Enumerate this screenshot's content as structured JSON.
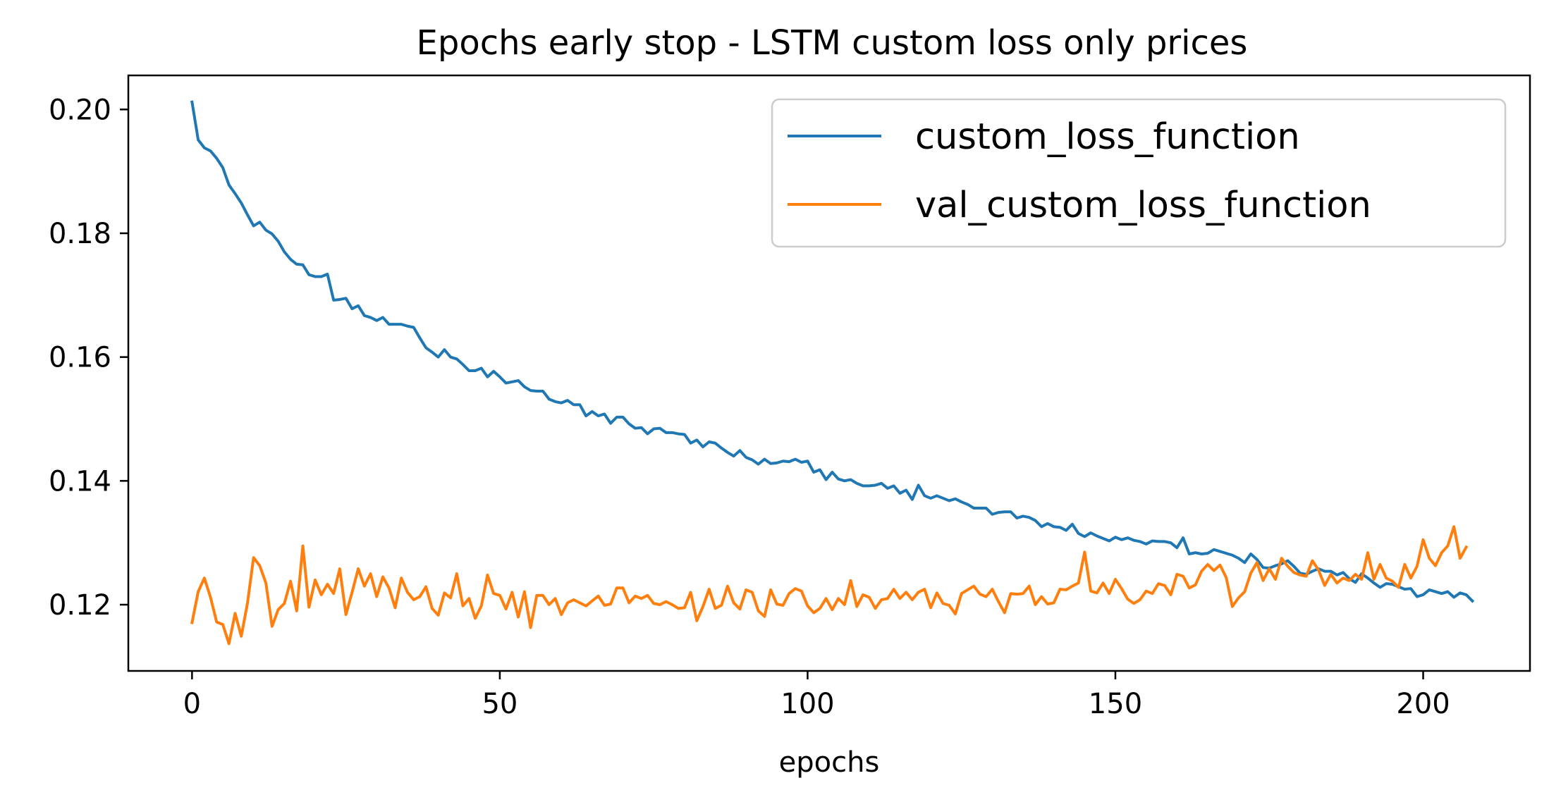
{
  "chart_data": {
    "type": "line",
    "title": "Epochs early stop - LSTM custom loss only prices",
    "xlabel": "epochs",
    "ylabel": "",
    "xlim": [
      -10.35,
      217.35
    ],
    "ylim": [
      0.1093,
      0.2055
    ],
    "xticks": [
      0,
      50,
      100,
      150,
      200
    ],
    "xtick_labels": [
      "0",
      "50",
      "100",
      "150",
      "200"
    ],
    "yticks": [
      0.12,
      0.14,
      0.16,
      0.18,
      0.2
    ],
    "ytick_labels": [
      "0.12",
      "0.14",
      "0.16",
      "0.18",
      "0.20"
    ],
    "grid": false,
    "legend_position": "top-right",
    "series": [
      {
        "name": "custom_loss_function",
        "color": "#1f77b4",
        "values": [
          0.2012,
          0.1951,
          0.1938,
          0.1933,
          0.1921,
          0.1906,
          0.1878,
          0.1864,
          0.1849,
          0.183,
          0.1812,
          0.1818,
          0.1805,
          0.1799,
          0.1787,
          0.177,
          0.1758,
          0.175,
          0.1749,
          0.1733,
          0.173,
          0.173,
          0.1734,
          0.1692,
          0.1693,
          0.1695,
          0.1678,
          0.1683,
          0.1667,
          0.1664,
          0.1659,
          0.1664,
          0.1653,
          0.1653,
          0.1653,
          0.165,
          0.1648,
          0.1631,
          0.1615,
          0.1608,
          0.16,
          0.1612,
          0.16,
          0.1597,
          0.1588,
          0.1578,
          0.1578,
          0.1582,
          0.1568,
          0.1577,
          0.1568,
          0.1558,
          0.156,
          0.1562,
          0.1552,
          0.1546,
          0.1545,
          0.1545,
          0.1532,
          0.1528,
          0.1526,
          0.153,
          0.1523,
          0.1523,
          0.1505,
          0.1512,
          0.1505,
          0.1508,
          0.1493,
          0.1503,
          0.1503,
          0.1492,
          0.1485,
          0.1486,
          0.1476,
          0.1484,
          0.1485,
          0.1478,
          0.1478,
          0.1476,
          0.1475,
          0.1461,
          0.1466,
          0.1455,
          0.1463,
          0.1461,
          0.1453,
          0.1446,
          0.144,
          0.1449,
          0.1438,
          0.1434,
          0.1427,
          0.1435,
          0.1428,
          0.1429,
          0.1432,
          0.1431,
          0.1435,
          0.143,
          0.1432,
          0.1414,
          0.1418,
          0.1402,
          0.1414,
          0.1403,
          0.14,
          0.1402,
          0.1396,
          0.1392,
          0.1392,
          0.1393,
          0.1396,
          0.1388,
          0.1392,
          0.138,
          0.1385,
          0.137,
          0.1393,
          0.1376,
          0.1372,
          0.1376,
          0.1372,
          0.1368,
          0.1371,
          0.1366,
          0.1362,
          0.1356,
          0.1356,
          0.1356,
          0.1346,
          0.1349,
          0.135,
          0.135,
          0.134,
          0.1343,
          0.1341,
          0.1336,
          0.1326,
          0.1331,
          0.1326,
          0.1325,
          0.132,
          0.133,
          0.1315,
          0.131,
          0.1316,
          0.1311,
          0.1307,
          0.1303,
          0.1309,
          0.1305,
          0.1308,
          0.1304,
          0.1302,
          0.1298,
          0.1303,
          0.1302,
          0.1302,
          0.13,
          0.1292,
          0.1308,
          0.1282,
          0.1284,
          0.1282,
          0.1283,
          0.1289,
          0.1286,
          0.1283,
          0.128,
          0.1275,
          0.1268,
          0.1282,
          0.1273,
          0.126,
          0.1259,
          0.1263,
          0.1266,
          0.1271,
          0.1262,
          0.1251,
          0.1249,
          0.1254,
          0.1258,
          0.1254,
          0.1254,
          0.1248,
          0.1252,
          0.1242,
          0.1236,
          0.125,
          0.1243,
          0.1235,
          0.1228,
          0.1234,
          0.1233,
          0.1229,
          0.1225,
          0.1226,
          0.1213,
          0.1216,
          0.1224,
          0.1221,
          0.1218,
          0.1221,
          0.1212,
          0.1219,
          0.1216,
          0.1206
        ]
      },
      {
        "name": "val_custom_loss_function",
        "color": "#ff7f0e",
        "values": [
          0.1171,
          0.1221,
          0.1243,
          0.1212,
          0.1172,
          0.1168,
          0.1137,
          0.1186,
          0.1149,
          0.1202,
          0.1276,
          0.1263,
          0.1235,
          0.1165,
          0.1192,
          0.1202,
          0.1238,
          0.119,
          0.1295,
          0.1196,
          0.124,
          0.1216,
          0.1233,
          0.1218,
          0.1258,
          0.1184,
          0.122,
          0.1258,
          0.123,
          0.125,
          0.1213,
          0.1245,
          0.1227,
          0.1195,
          0.1243,
          0.122,
          0.1208,
          0.1213,
          0.1229,
          0.1194,
          0.1183,
          0.1219,
          0.1211,
          0.125,
          0.1198,
          0.121,
          0.1178,
          0.1198,
          0.1248,
          0.1218,
          0.1215,
          0.1193,
          0.122,
          0.118,
          0.1221,
          0.1163,
          0.1215,
          0.1215,
          0.12,
          0.121,
          0.1184,
          0.1203,
          0.1208,
          0.1203,
          0.1198,
          0.1206,
          0.1214,
          0.1199,
          0.1201,
          0.1227,
          0.1227,
          0.1203,
          0.1214,
          0.121,
          0.1215,
          0.1202,
          0.12,
          0.1205,
          0.12,
          0.1194,
          0.1195,
          0.122,
          0.1174,
          0.1197,
          0.1225,
          0.1194,
          0.1199,
          0.123,
          0.1203,
          0.1193,
          0.1224,
          0.122,
          0.119,
          0.1181,
          0.1224,
          0.1201,
          0.1199,
          0.1218,
          0.1226,
          0.1222,
          0.1198,
          0.1187,
          0.1194,
          0.121,
          0.1192,
          0.121,
          0.12,
          0.1239,
          0.1197,
          0.1216,
          0.1212,
          0.1194,
          0.1208,
          0.121,
          0.1225,
          0.121,
          0.122,
          0.1208,
          0.122,
          0.1225,
          0.1195,
          0.1219,
          0.1202,
          0.1199,
          0.1185,
          0.1218,
          0.1224,
          0.123,
          0.1217,
          0.1213,
          0.1225,
          0.1205,
          0.1187,
          0.1218,
          0.1217,
          0.1218,
          0.123,
          0.12,
          0.1213,
          0.1201,
          0.1203,
          0.1225,
          0.1224,
          0.123,
          0.1235,
          0.1285,
          0.1222,
          0.1219,
          0.1235,
          0.1218,
          0.1241,
          0.1226,
          0.1209,
          0.1202,
          0.1208,
          0.1222,
          0.1218,
          0.1234,
          0.1231,
          0.1216,
          0.1249,
          0.1246,
          0.1227,
          0.1232,
          0.1254,
          0.1265,
          0.1255,
          0.1264,
          0.1244,
          0.1197,
          0.1211,
          0.1221,
          0.1251,
          0.1268,
          0.1239,
          0.1258,
          0.1241,
          0.1275,
          0.1262,
          0.1252,
          0.1248,
          0.1246,
          0.1271,
          0.1256,
          0.1231,
          0.1249,
          0.1235,
          0.1243,
          0.1239,
          0.1249,
          0.1241,
          0.1284,
          0.1241,
          0.1265,
          0.1243,
          0.1238,
          0.1228,
          0.1265,
          0.1243,
          0.1262,
          0.1305,
          0.1275,
          0.1263,
          0.1284,
          0.1295,
          0.1326,
          0.1275,
          0.1293
        ]
      }
    ]
  }
}
